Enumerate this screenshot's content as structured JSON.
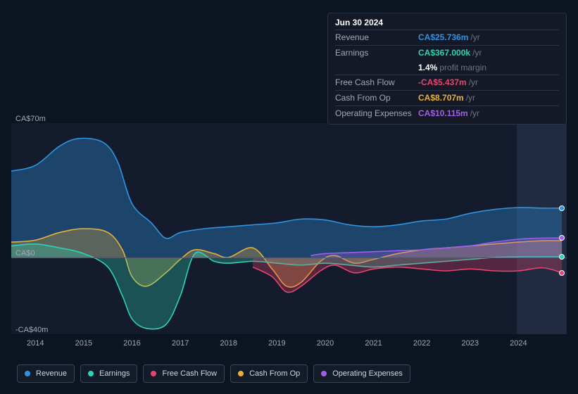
{
  "tooltip": {
    "date": "Jun 30 2024",
    "rows": [
      {
        "label": "Revenue",
        "value": "CA$25.736m",
        "unit": "/yr",
        "color": "#2f93e0"
      },
      {
        "label": "Earnings",
        "value": "CA$367.000k",
        "unit": "/yr",
        "color": "#2bd4b5"
      },
      {
        "label": "",
        "value": "1.4%",
        "unit": "profit margin",
        "color": "#ffffff",
        "sub": true
      },
      {
        "label": "Free Cash Flow",
        "value": "-CA$5.437m",
        "unit": "/yr",
        "color": "#e8446d"
      },
      {
        "label": "Cash From Op",
        "value": "CA$8.707m",
        "unit": "/yr",
        "color": "#e8b13a"
      },
      {
        "label": "Operating Expenses",
        "value": "CA$10.115m",
        "unit": "/yr",
        "color": "#a15ee8"
      }
    ]
  },
  "chart": {
    "type": "area",
    "background_color": "#141b2c",
    "forecast_band_color": "#202a40",
    "forecast_start_pct": 91,
    "ylim": [
      -40,
      70
    ],
    "yticks": [
      {
        "label": "CA$70m",
        "v": 70
      },
      {
        "label": "CA$0",
        "v": 0
      },
      {
        "label": "-CA$40m",
        "v": -40
      }
    ],
    "xlim": [
      2013.5,
      2025
    ],
    "xticks": [
      "2014",
      "2015",
      "2016",
      "2017",
      "2018",
      "2019",
      "2020",
      "2021",
      "2022",
      "2023",
      "2024"
    ],
    "series": [
      {
        "name": "Revenue",
        "color": "#2f93e0",
        "fill_opacity": 0.35,
        "points": [
          [
            2013.5,
            45
          ],
          [
            2014,
            48
          ],
          [
            2014.5,
            58
          ],
          [
            2014.9,
            62
          ],
          [
            2015.4,
            60
          ],
          [
            2015.7,
            50
          ],
          [
            2016,
            28
          ],
          [
            2016.4,
            18
          ],
          [
            2016.7,
            10
          ],
          [
            2017,
            13
          ],
          [
            2017.5,
            15
          ],
          [
            2018,
            16
          ],
          [
            2018.5,
            17
          ],
          [
            2019,
            18
          ],
          [
            2019.5,
            20
          ],
          [
            2020,
            19.5
          ],
          [
            2020.5,
            17
          ],
          [
            2021,
            16
          ],
          [
            2021.5,
            17
          ],
          [
            2022,
            19
          ],
          [
            2022.5,
            20
          ],
          [
            2023,
            23
          ],
          [
            2023.5,
            25
          ],
          [
            2024,
            26
          ],
          [
            2024.5,
            25.7
          ],
          [
            2024.9,
            25.7
          ]
        ],
        "end_marker": true
      },
      {
        "name": "Cash From Op",
        "color": "#e8b13a",
        "fill_opacity": 0.3,
        "points": [
          [
            2013.5,
            8
          ],
          [
            2014,
            9
          ],
          [
            2014.5,
            13
          ],
          [
            2015,
            15
          ],
          [
            2015.5,
            13
          ],
          [
            2015.8,
            4
          ],
          [
            2016,
            -10
          ],
          [
            2016.3,
            -15
          ],
          [
            2016.7,
            -8
          ],
          [
            2017,
            -1
          ],
          [
            2017.3,
            4
          ],
          [
            2017.7,
            2
          ],
          [
            2018,
            0
          ],
          [
            2018.5,
            5
          ],
          [
            2018.9,
            -6
          ],
          [
            2019.2,
            -15
          ],
          [
            2019.5,
            -13
          ],
          [
            2019.9,
            -2
          ],
          [
            2020.2,
            1
          ],
          [
            2020.6,
            -3
          ],
          [
            2021,
            -1
          ],
          [
            2021.5,
            2
          ],
          [
            2022,
            4
          ],
          [
            2022.5,
            5
          ],
          [
            2023,
            6
          ],
          [
            2023.5,
            7
          ],
          [
            2024,
            8
          ],
          [
            2024.5,
            8.7
          ],
          [
            2024.9,
            8.7
          ]
        ]
      },
      {
        "name": "Earnings",
        "color": "#2bd4b5",
        "fill_opacity": 0.3,
        "points": [
          [
            2013.5,
            6
          ],
          [
            2014,
            7
          ],
          [
            2014.5,
            5
          ],
          [
            2015,
            2
          ],
          [
            2015.5,
            -5
          ],
          [
            2015.8,
            -20
          ],
          [
            2016,
            -32
          ],
          [
            2016.3,
            -37
          ],
          [
            2016.7,
            -35
          ],
          [
            2017,
            -20
          ],
          [
            2017.3,
            2
          ],
          [
            2017.7,
            -2
          ],
          [
            2018,
            -3
          ],
          [
            2018.5,
            -2
          ],
          [
            2019,
            -3
          ],
          [
            2019.5,
            -4
          ],
          [
            2020,
            -3
          ],
          [
            2020.5,
            -4
          ],
          [
            2021,
            -5
          ],
          [
            2021.5,
            -4
          ],
          [
            2022,
            -3
          ],
          [
            2022.5,
            -2
          ],
          [
            2023,
            -1
          ],
          [
            2023.5,
            0
          ],
          [
            2024,
            0.3
          ],
          [
            2024.5,
            0.4
          ],
          [
            2024.9,
            0.4
          ]
        ],
        "end_marker": true
      },
      {
        "name": "Free Cash Flow",
        "color": "#e8446d",
        "fill_opacity": 0.3,
        "points": [
          [
            2018.5,
            -5
          ],
          [
            2018.9,
            -10
          ],
          [
            2019.2,
            -18
          ],
          [
            2019.5,
            -15
          ],
          [
            2019.9,
            -7
          ],
          [
            2020.2,
            -4
          ],
          [
            2020.6,
            -8
          ],
          [
            2021,
            -6
          ],
          [
            2021.5,
            -5
          ],
          [
            2022,
            -6
          ],
          [
            2022.5,
            -7
          ],
          [
            2023,
            -6
          ],
          [
            2023.5,
            -7
          ],
          [
            2024,
            -7
          ],
          [
            2024.5,
            -5.4
          ],
          [
            2024.9,
            -8
          ]
        ],
        "end_marker": true
      },
      {
        "name": "Operating Expenses",
        "color": "#a15ee8",
        "fill_opacity": 0.3,
        "points": [
          [
            2019.7,
            1
          ],
          [
            2020,
            2
          ],
          [
            2020.5,
            2.5
          ],
          [
            2021,
            3
          ],
          [
            2021.5,
            3.5
          ],
          [
            2022,
            4
          ],
          [
            2022.5,
            5
          ],
          [
            2023,
            6
          ],
          [
            2023.5,
            8
          ],
          [
            2024,
            9.5
          ],
          [
            2024.5,
            10.1
          ],
          [
            2024.9,
            10.1
          ]
        ],
        "end_marker": true
      }
    ],
    "legend": [
      {
        "label": "Revenue",
        "color": "#2f93e0"
      },
      {
        "label": "Earnings",
        "color": "#2bd4b5"
      },
      {
        "label": "Free Cash Flow",
        "color": "#e8446d"
      },
      {
        "label": "Cash From Op",
        "color": "#e8b13a"
      },
      {
        "label": "Operating Expenses",
        "color": "#a15ee8"
      }
    ]
  }
}
